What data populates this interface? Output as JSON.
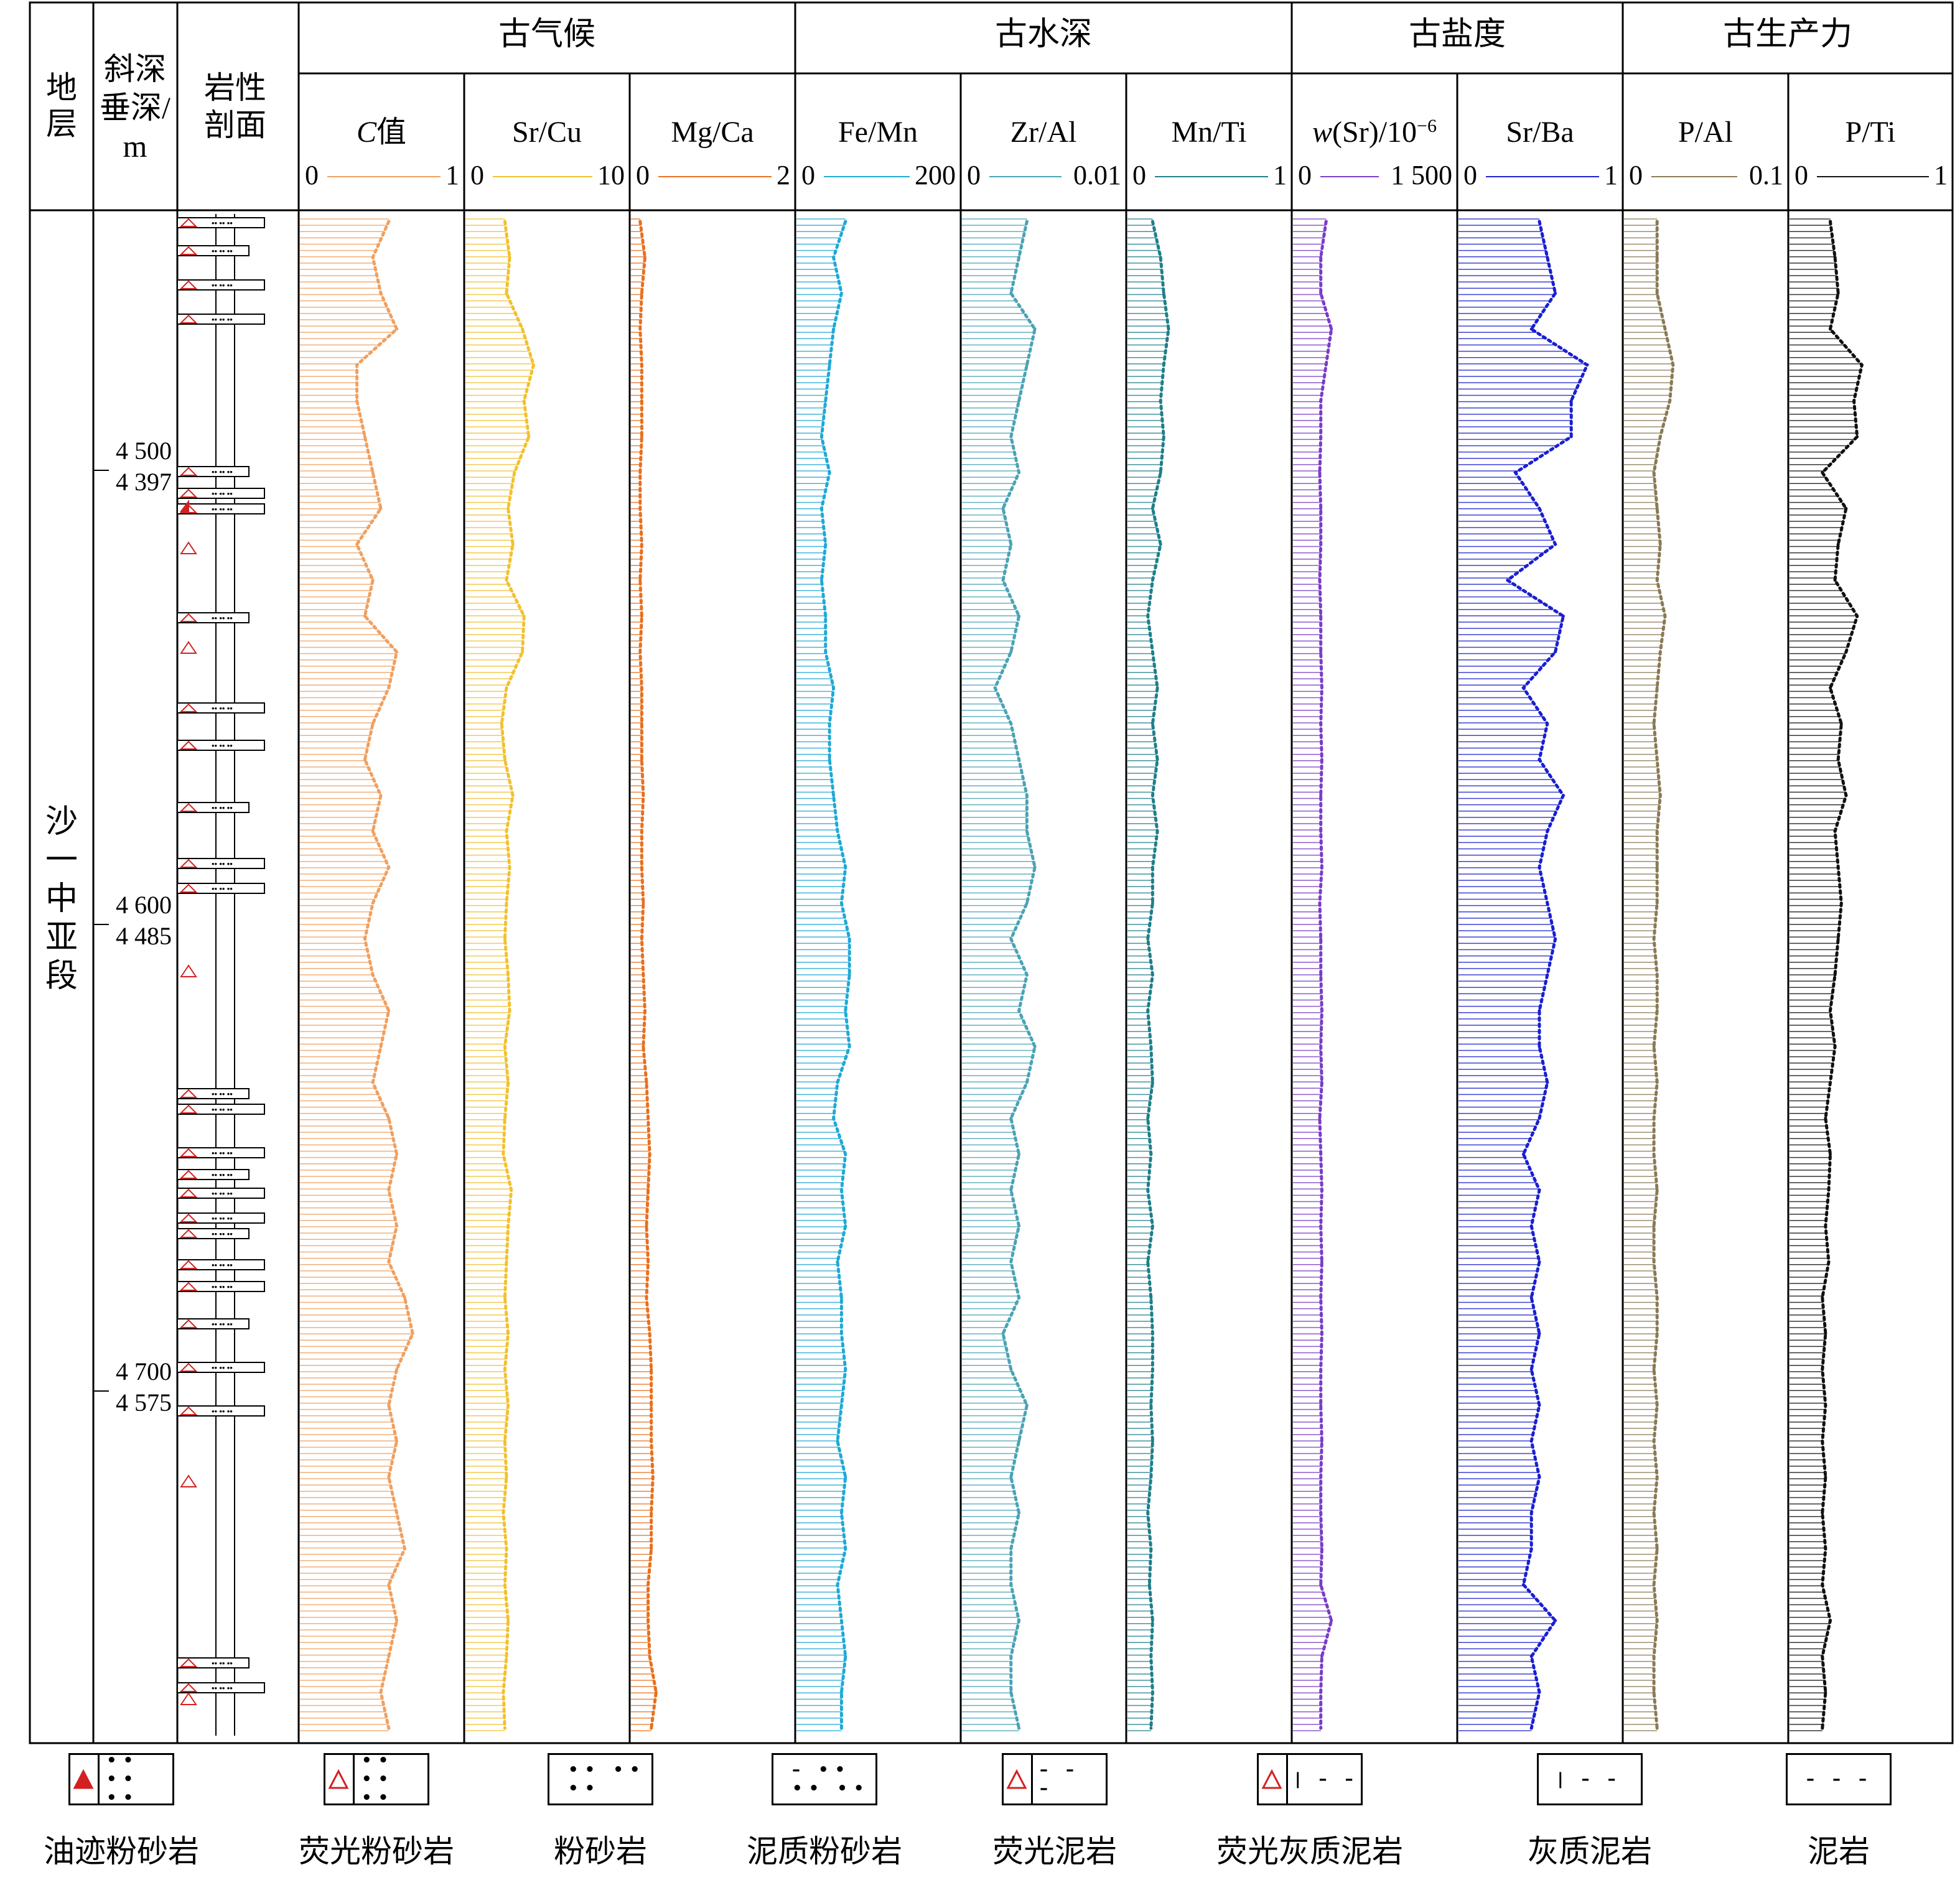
{
  "headers": {
    "stratum": "地层",
    "depth_line1": "斜深",
    "depth_line2": "垂深/",
    "depth_line3": "m",
    "lith_line1": "岩性",
    "lith_line2": "剖面"
  },
  "stratum_name": [
    "沙",
    "一",
    "中",
    "亚",
    "段"
  ],
  "depth_labels": [
    {
      "measured": "4 500",
      "vertical": "4 397"
    },
    {
      "measured": "4 600",
      "vertical": "4 485"
    },
    {
      "measured": "4 700",
      "vertical": "4 575"
    }
  ],
  "groups": [
    "古气候",
    "古水深",
    "古盐度",
    "古生产力"
  ],
  "colors": {
    "c_value": "#f0a060",
    "sr_cu": "#f2c12e",
    "mg_ca": "#e8701f",
    "fe_mn": "#1fa9d6",
    "zr_al": "#4aa3b5",
    "mn_ti": "#1f7f8a",
    "w_sr": "#7a3cc8",
    "sr_ba": "#1a1fd0",
    "p_al": "#8a7a55",
    "p_ti": "#111111",
    "oil_red": "#d42020"
  },
  "chart_data": [
    {
      "type": "line",
      "group": "古气候",
      "title_main": "C",
      "title_suffix": "值",
      "italic_prefix": true,
      "axis_min": "0",
      "axis_max": "1",
      "xlim": [
        0,
        1
      ],
      "color_key": "c_value",
      "values": [
        0.55,
        0.45,
        0.5,
        0.6,
        0.35,
        0.35,
        0.4,
        0.45,
        0.5,
        0.35,
        0.45,
        0.4,
        0.6,
        0.55,
        0.45,
        0.4,
        0.5,
        0.45,
        0.55,
        0.45,
        0.4,
        0.45,
        0.55,
        0.5,
        0.45,
        0.55,
        0.6,
        0.55,
        0.6,
        0.55,
        0.65,
        0.7,
        0.6,
        0.55,
        0.6,
        0.55,
        0.6,
        0.65,
        0.55,
        0.6,
        0.55,
        0.5,
        0.55
      ]
    },
    {
      "type": "line",
      "group": "古气候",
      "title_main": "Sr/Cu",
      "axis_min": "0",
      "axis_max": "10",
      "xlim": [
        0,
        10
      ],
      "color_key": "sr_cu",
      "values": [
        2.4,
        2.7,
        2.5,
        3.5,
        4.2,
        3.6,
        3.9,
        3.0,
        2.6,
        2.9,
        2.5,
        3.6,
        3.5,
        2.5,
        2.2,
        2.4,
        2.9,
        2.5,
        2.7,
        2.5,
        2.4,
        2.6,
        2.7,
        2.4,
        2.6,
        2.4,
        2.3,
        2.8,
        2.6,
        2.5,
        2.4,
        2.6,
        2.4,
        2.6,
        2.4,
        2.5,
        2.3,
        2.5,
        2.4,
        2.6,
        2.5,
        2.3,
        2.4
      ]
    },
    {
      "type": "line",
      "group": "古气候",
      "title_main": "Mg/Ca",
      "axis_min": "0",
      "axis_max": "2",
      "xlim": [
        0,
        2
      ],
      "color_key": "mg_ca",
      "values": [
        0.1,
        0.16,
        0.12,
        0.1,
        0.12,
        0.12,
        0.12,
        0.1,
        0.1,
        0.12,
        0.1,
        0.12,
        0.1,
        0.12,
        0.12,
        0.12,
        0.14,
        0.12,
        0.12,
        0.14,
        0.12,
        0.14,
        0.16,
        0.14,
        0.18,
        0.2,
        0.22,
        0.2,
        0.18,
        0.2,
        0.18,
        0.22,
        0.24,
        0.24,
        0.24,
        0.26,
        0.24,
        0.24,
        0.2,
        0.2,
        0.22,
        0.3,
        0.24
      ]
    },
    {
      "type": "line",
      "group": "古水深",
      "title_main": "Fe/Mn",
      "axis_min": "0",
      "axis_max": "200",
      "xlim": [
        0,
        200
      ],
      "color_key": "fe_mn",
      "values": [
        60,
        45,
        55,
        45,
        40,
        35,
        30,
        40,
        30,
        35,
        30,
        35,
        35,
        45,
        40,
        40,
        45,
        50,
        60,
        55,
        65,
        65,
        60,
        65,
        50,
        45,
        60,
        55,
        60,
        50,
        55,
        55,
        60,
        55,
        50,
        60,
        55,
        60,
        50,
        55,
        60,
        55,
        55
      ]
    },
    {
      "type": "line",
      "group": "古水深",
      "title_main": "Zr/Al",
      "axis_min": "0",
      "axis_max": "0.01",
      "xlim": [
        0,
        0.01
      ],
      "color_key": "zr_al",
      "values": [
        0.004,
        0.0035,
        0.003,
        0.0045,
        0.004,
        0.0035,
        0.003,
        0.0035,
        0.0025,
        0.003,
        0.0025,
        0.0035,
        0.003,
        0.002,
        0.003,
        0.0035,
        0.004,
        0.004,
        0.0045,
        0.004,
        0.003,
        0.004,
        0.0035,
        0.0045,
        0.004,
        0.003,
        0.0035,
        0.003,
        0.0035,
        0.003,
        0.0035,
        0.0025,
        0.003,
        0.004,
        0.0035,
        0.003,
        0.0035,
        0.003,
        0.003,
        0.0035,
        0.003,
        0.003,
        0.0035
      ]
    },
    {
      "type": "line",
      "group": "古水深",
      "title_main": "Mn/Ti",
      "axis_min": "0",
      "axis_max": "1",
      "xlim": [
        0,
        1
      ],
      "color_key": "mn_ti",
      "values": [
        0.15,
        0.2,
        0.22,
        0.25,
        0.22,
        0.2,
        0.22,
        0.2,
        0.15,
        0.2,
        0.15,
        0.12,
        0.15,
        0.18,
        0.15,
        0.18,
        0.15,
        0.18,
        0.15,
        0.15,
        0.12,
        0.15,
        0.12,
        0.14,
        0.15,
        0.12,
        0.14,
        0.12,
        0.15,
        0.12,
        0.14,
        0.15,
        0.15,
        0.14,
        0.15,
        0.14,
        0.12,
        0.14,
        0.13,
        0.15,
        0.14,
        0.15,
        0.14
      ]
    },
    {
      "type": "line",
      "group": "古盐度",
      "title_main": "w(Sr)/10",
      "title_sup": "−6",
      "italic_prefix_char": "w",
      "axis_min": "0",
      "axis_max": "1 500",
      "xlim": [
        0,
        1500
      ],
      "color_key": "w_sr",
      "values": [
        300,
        250,
        250,
        350,
        300,
        250,
        250,
        240,
        250,
        250,
        240,
        250,
        250,
        260,
        250,
        260,
        250,
        250,
        260,
        240,
        250,
        250,
        260,
        250,
        260,
        240,
        250,
        260,
        250,
        260,
        250,
        260,
        250,
        250,
        260,
        250,
        250,
        260,
        250,
        350,
        260,
        250,
        250
      ]
    },
    {
      "type": "line",
      "group": "古盐度",
      "title_main": "Sr/Ba",
      "axis_min": "0",
      "axis_max": "1",
      "xlim": [
        0,
        1
      ],
      "color_key": "sr_ba",
      "values": [
        0.5,
        0.55,
        0.6,
        0.45,
        0.8,
        0.7,
        0.7,
        0.35,
        0.5,
        0.6,
        0.3,
        0.65,
        0.6,
        0.4,
        0.55,
        0.5,
        0.65,
        0.55,
        0.5,
        0.55,
        0.6,
        0.55,
        0.5,
        0.5,
        0.55,
        0.5,
        0.4,
        0.5,
        0.45,
        0.5,
        0.45,
        0.5,
        0.45,
        0.5,
        0.45,
        0.5,
        0.45,
        0.45,
        0.4,
        0.6,
        0.45,
        0.5,
        0.45
      ]
    },
    {
      "type": "line",
      "group": "古生产力",
      "title_main": "P/Al",
      "axis_min": "0",
      "axis_max": "0.1",
      "xlim": [
        0,
        0.1
      ],
      "color_key": "p_al",
      "values": [
        0.02,
        0.02,
        0.02,
        0.025,
        0.03,
        0.028,
        0.022,
        0.018,
        0.02,
        0.022,
        0.02,
        0.025,
        0.022,
        0.02,
        0.018,
        0.02,
        0.022,
        0.02,
        0.02,
        0.02,
        0.018,
        0.02,
        0.02,
        0.018,
        0.02,
        0.018,
        0.018,
        0.02,
        0.018,
        0.018,
        0.02,
        0.02,
        0.018,
        0.02,
        0.018,
        0.02,
        0.018,
        0.02,
        0.018,
        0.02,
        0.018,
        0.018,
        0.02
      ]
    },
    {
      "type": "line",
      "group": "古生产力",
      "title_main": "P/Ti",
      "axis_min": "0",
      "axis_max": "1",
      "xlim": [
        0,
        1
      ],
      "color_key": "p_ti",
      "values": [
        0.25,
        0.28,
        0.3,
        0.25,
        0.45,
        0.4,
        0.42,
        0.2,
        0.35,
        0.3,
        0.28,
        0.42,
        0.35,
        0.25,
        0.32,
        0.3,
        0.35,
        0.28,
        0.3,
        0.32,
        0.3,
        0.28,
        0.25,
        0.28,
        0.25,
        0.22,
        0.25,
        0.24,
        0.22,
        0.24,
        0.2,
        0.22,
        0.2,
        0.22,
        0.2,
        0.22,
        0.2,
        0.22,
        0.2,
        0.25,
        0.2,
        0.22,
        0.2
      ]
    }
  ],
  "legend": [
    {
      "label": "油迹粉砂岩",
      "pattern": "oil_silt"
    },
    {
      "label": "荧光粉砂岩",
      "pattern": "fluo_silt"
    },
    {
      "label": "粉砂岩",
      "pattern": "silt"
    },
    {
      "label": "泥质粉砂岩",
      "pattern": "mud_silt"
    },
    {
      "label": "荧光泥岩",
      "pattern": "fluo_mud"
    },
    {
      "label": "荧光灰质泥岩",
      "pattern": "fluo_lime_mud"
    },
    {
      "label": "灰质泥岩",
      "pattern": "lime_mud"
    },
    {
      "label": "泥岩",
      "pattern": "mud"
    }
  ],
  "legend_glyphs": {
    "dots": "•• •• ••",
    "dashes": "– – –",
    "bar_dashes": "|  – –",
    "mixed": "– •• •• ••"
  }
}
